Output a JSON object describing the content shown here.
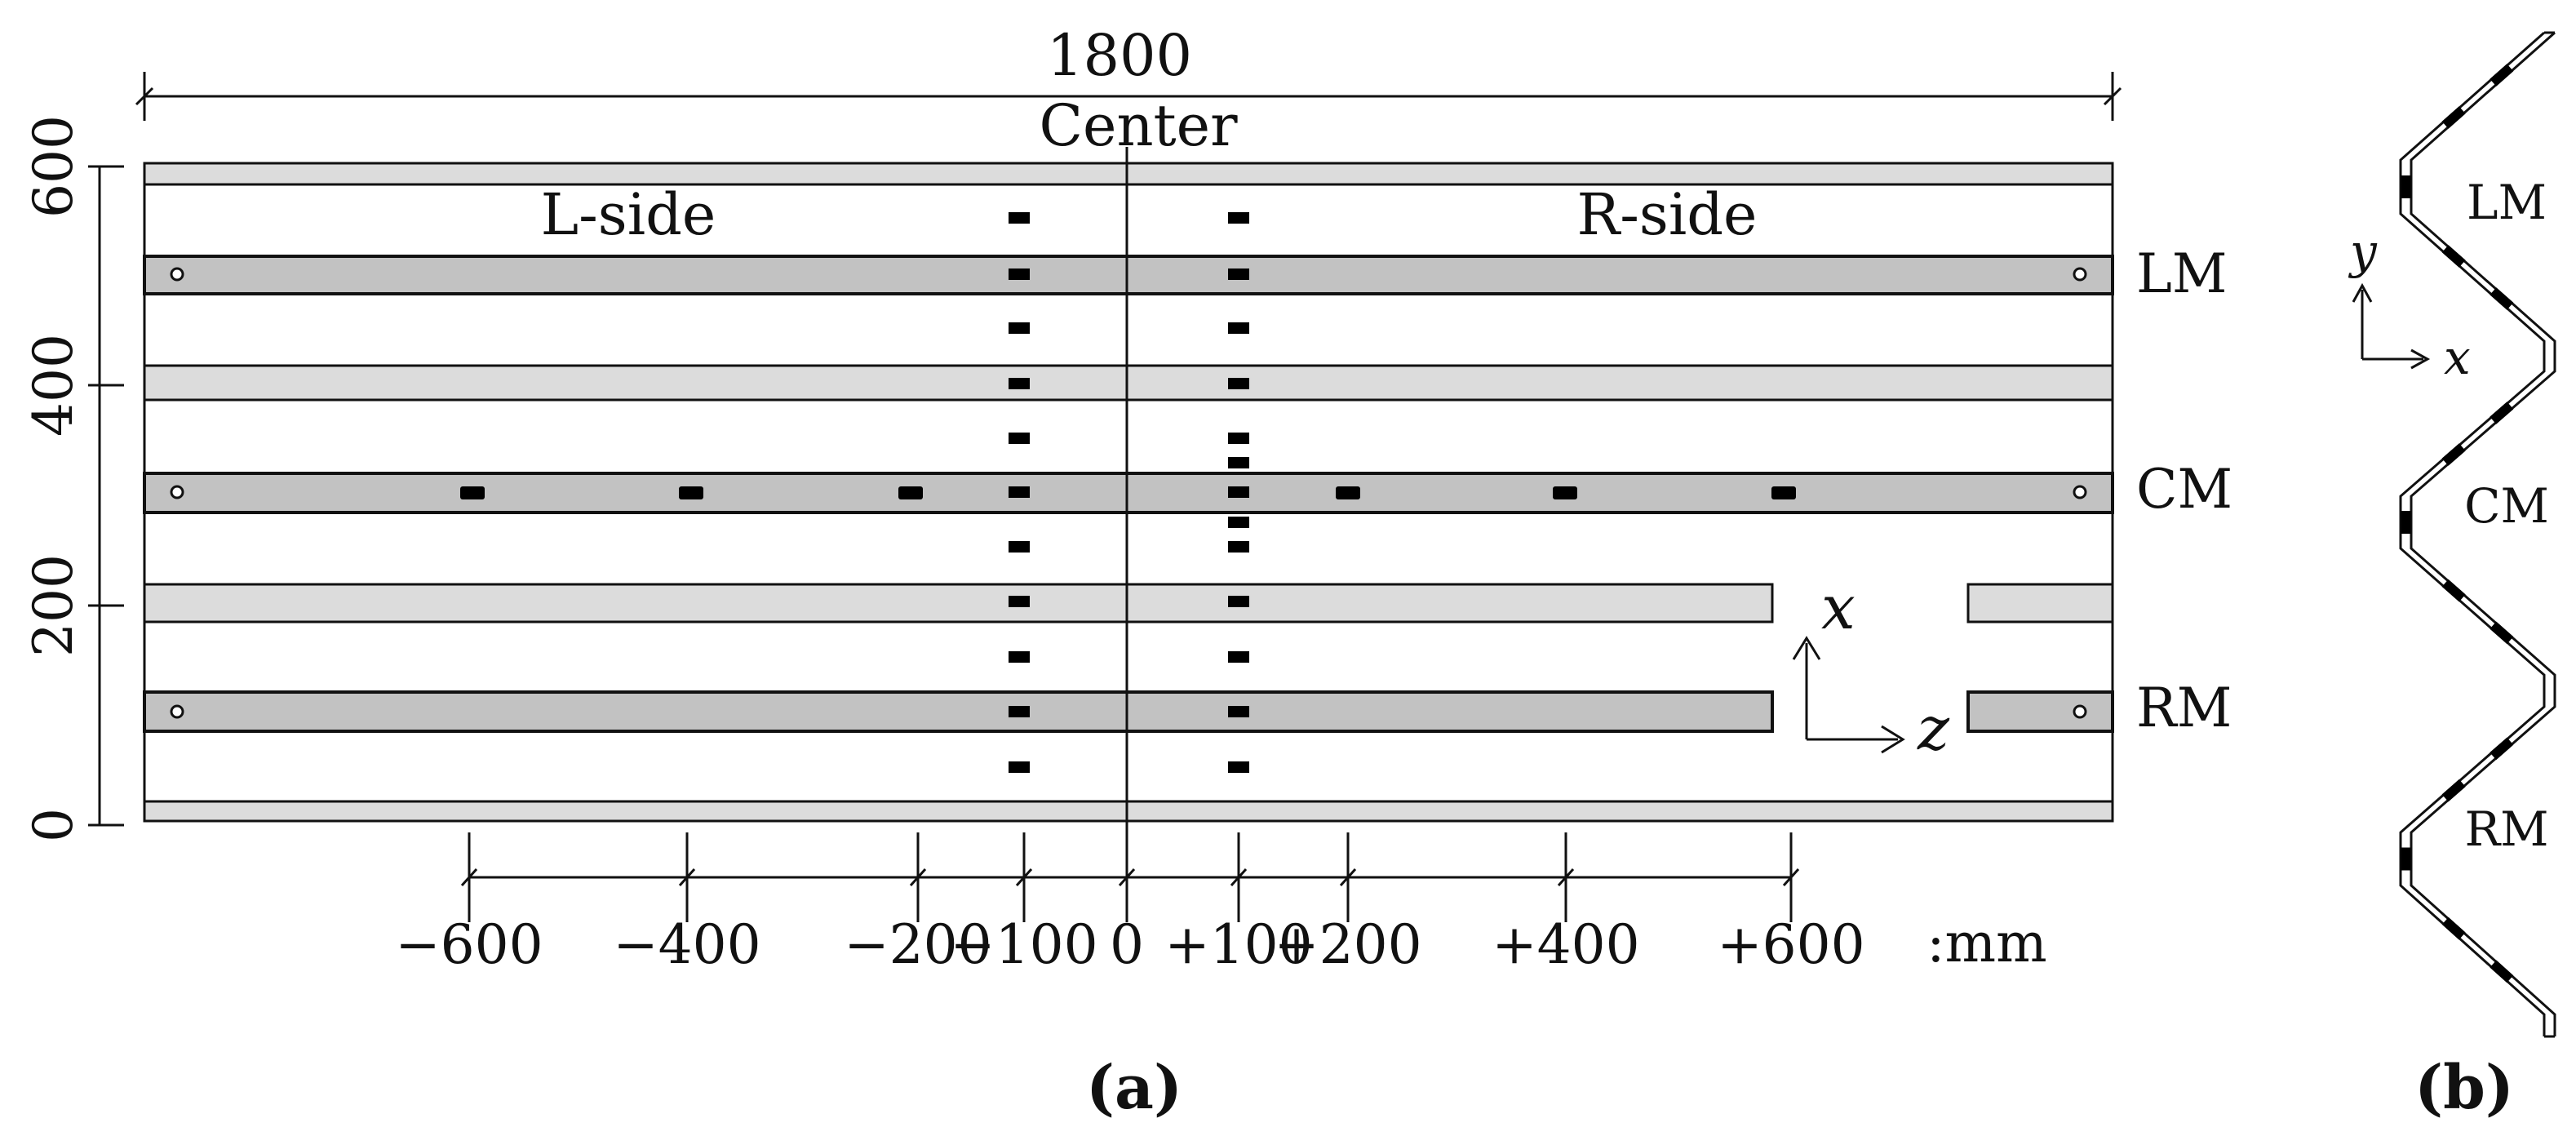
{
  "panel_a": {
    "caption": "(a)",
    "total_length_label": "1800",
    "center_label": "Center",
    "left_side_label": "L-side",
    "right_side_label": "R-side",
    "y_axis": {
      "ticks": [
        "0",
        "200",
        "400",
        "600"
      ]
    },
    "x_axis": {
      "ticks": [
        "−600",
        "−400",
        "−200",
        "−100",
        "0",
        "+100",
        "+200",
        "+400",
        "+600"
      ],
      "unit_label": ":mm"
    },
    "row_labels": {
      "lm": "LM",
      "cm": "CM",
      "rm": "RM"
    },
    "coord_axes": {
      "vertical": "x",
      "horizontal": "z"
    }
  },
  "panel_b": {
    "caption": "(b)",
    "labels": {
      "lm": "LM",
      "cm": "CM",
      "rm": "RM"
    },
    "coord_axes": {
      "vertical": "y",
      "horizontal": "x"
    }
  },
  "colors": {
    "ink": "#111111",
    "mid_band": "#c2c2c2",
    "light_band": "#dcdcdc",
    "gauge": "#000000"
  }
}
